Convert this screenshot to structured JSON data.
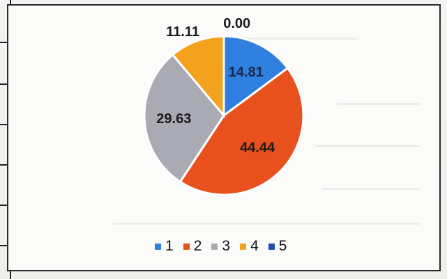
{
  "chart_data": {
    "type": "pie",
    "categories": [
      "1",
      "2",
      "3",
      "4",
      "5"
    ],
    "values": [
      14.81,
      44.44,
      29.63,
      11.11,
      0.0
    ],
    "data_labels": [
      "14.81",
      "44.44",
      "29.63",
      "11.11",
      "0.00"
    ],
    "colors": [
      "#2f7fe0",
      "#e8501e",
      "#a9aab4",
      "#f2a21c",
      "#1f4fae"
    ],
    "legend": [
      "1",
      "2",
      "3",
      "4",
      "5"
    ],
    "legend_position": "bottom",
    "title": ""
  }
}
